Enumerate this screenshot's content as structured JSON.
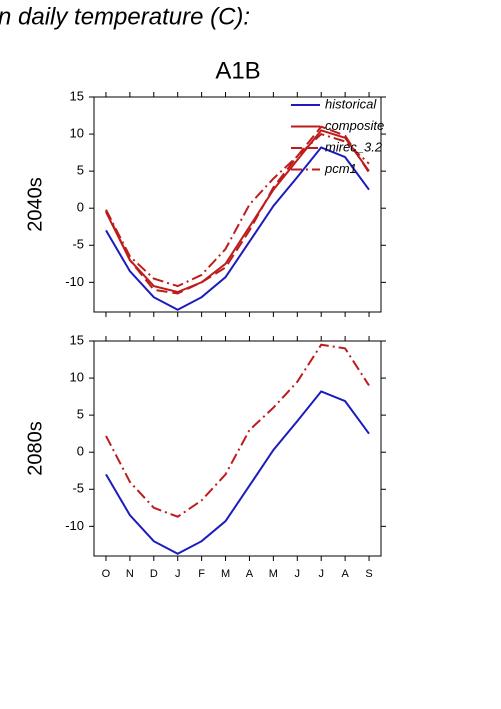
{
  "page_title": "n daily temperature (C):",
  "chart_data": [
    {
      "type": "line",
      "title": "A1B",
      "ylabel": "2040s",
      "categories": [
        null,
        null,
        null,
        null,
        null,
        null,
        null,
        null,
        null,
        null,
        null,
        null
      ],
      "ylim": [
        -14,
        15
      ],
      "yticks": [
        -10,
        -5,
        0,
        5,
        10,
        15
      ],
      "legend": "upper right",
      "series": [
        {
          "name": "historical",
          "color": "#1c1cbe",
          "linestyle": "solid",
          "values": [
            -3,
            -8.5,
            -12,
            -13.7,
            -12,
            -9.3,
            -4.5,
            0.3,
            4.2,
            8.2,
            6.9,
            2.5
          ]
        },
        {
          "name": "composite",
          "color": "#be1c1c",
          "linestyle": "solid",
          "values": [
            -0.5,
            -7,
            -10.5,
            -11.3,
            -10,
            -7.5,
            -2.5,
            2.5,
            6.5,
            10.5,
            9.5,
            5
          ]
        },
        {
          "name": "mirec_3.2",
          "color": "#be1c1c",
          "linestyle": "dashed",
          "values": [
            -0.3,
            -7,
            -11,
            -11.5,
            -10,
            -8,
            -3,
            2.8,
            7,
            11,
            9.8,
            4.8
          ]
        },
        {
          "name": "pcm1",
          "color": "#be1c1c",
          "linestyle": "dashdot",
          "values": [
            -0.2,
            -6.5,
            -9.5,
            -10.5,
            -9,
            -5.5,
            0.5,
            4,
            7,
            10,
            9,
            6
          ]
        }
      ]
    },
    {
      "type": "line",
      "ylabel": "2080s",
      "categories": [
        "O",
        "N",
        "D",
        "J",
        "F",
        "M",
        "A",
        "M",
        "J",
        "J",
        "A",
        "S"
      ],
      "ylim": [
        -14,
        15
      ],
      "yticks": [
        -10,
        -5,
        0,
        5,
        10,
        15
      ],
      "series": [
        {
          "color": "#1c1cbe",
          "linestyle": "solid",
          "values": [
            -3,
            -8.5,
            -12,
            -13.7,
            -12,
            -9.3,
            -4.5,
            0.3,
            4.2,
            8.2,
            6.9,
            2.5
          ]
        },
        {
          "color": "#be1c1c",
          "linestyle": "dashdot",
          "values": [
            2.2,
            -4,
            -7.5,
            -8.7,
            -6.5,
            -3,
            3,
            6,
            9.5,
            14.5,
            14,
            9
          ]
        }
      ]
    }
  ]
}
